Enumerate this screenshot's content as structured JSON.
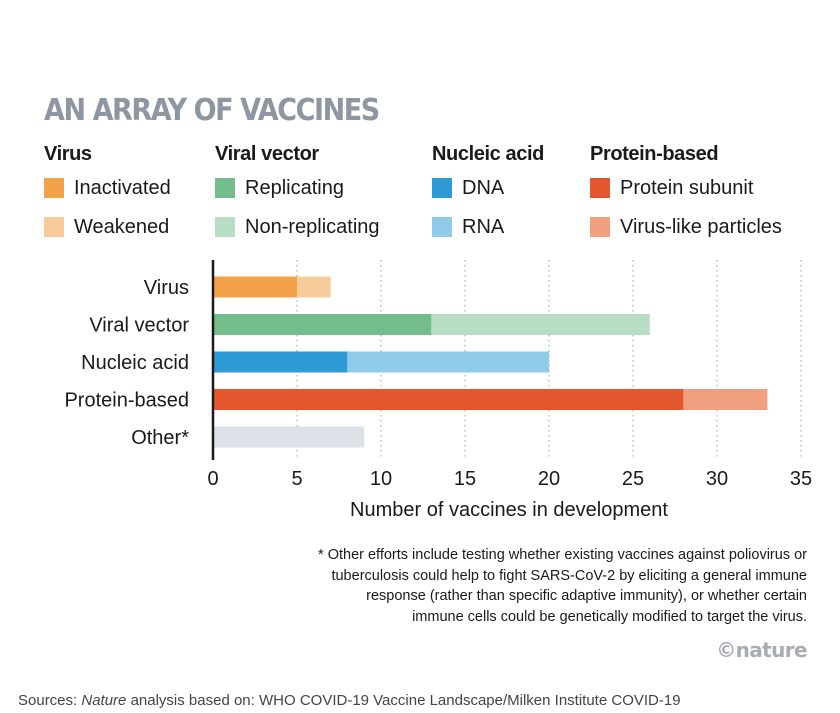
{
  "chart_data": {
    "type": "bar",
    "orientation": "horizontal",
    "stacked": true,
    "title": "AN ARRAY OF VACCINES",
    "xlabel": "Number of vaccines in development",
    "ylabel": "",
    "xlim": [
      0,
      35
    ],
    "xticks": [
      0,
      5,
      10,
      15,
      20,
      25,
      30,
      35
    ],
    "grid": "vertical dotted",
    "categories": [
      "Virus",
      "Viral vector",
      "Nucleic acid",
      "Protein-based",
      "Other*"
    ],
    "legend": [
      {
        "group": "Virus",
        "items": [
          {
            "label": "Inactivated",
            "color": "#f4a24a"
          },
          {
            "label": "Weakened",
            "color": "#f8cc9a"
          }
        ]
      },
      {
        "group": "Viral vector",
        "items": [
          {
            "label": "Replicating",
            "color": "#73bd8a"
          },
          {
            "label": "Non-replicating",
            "color": "#b7deC3"
          }
        ]
      },
      {
        "group": "Nucleic acid",
        "items": [
          {
            "label": "DNA",
            "color": "#2e9bd6"
          },
          {
            "label": "RNA",
            "color": "#90cbea"
          }
        ]
      },
      {
        "group": "Protein-based",
        "items": [
          {
            "label": "Protein subunit",
            "color": "#e4572e"
          },
          {
            "label": "Virus-like particles",
            "color": "#f0a07e"
          }
        ]
      }
    ],
    "bars": [
      {
        "category": "Virus",
        "segments": [
          {
            "name": "Inactivated",
            "value": 5,
            "color": "#f4a24a"
          },
          {
            "name": "Weakened",
            "value": 2,
            "color": "#f8cc9a"
          }
        ]
      },
      {
        "category": "Viral vector",
        "segments": [
          {
            "name": "Replicating",
            "value": 13,
            "color": "#73bd8a"
          },
          {
            "name": "Non-replicating",
            "value": 13,
            "color": "#b7dec3"
          }
        ]
      },
      {
        "category": "Nucleic acid",
        "segments": [
          {
            "name": "DNA",
            "value": 8,
            "color": "#2e9bd6"
          },
          {
            "name": "RNA",
            "value": 12,
            "color": "#90cbea"
          }
        ]
      },
      {
        "category": "Protein-based",
        "segments": [
          {
            "name": "Protein subunit",
            "value": 28,
            "color": "#e4572e"
          },
          {
            "name": "Virus-like particles",
            "value": 5,
            "color": "#f0a07e"
          }
        ]
      },
      {
        "category": "Other*",
        "segments": [
          {
            "name": "Other",
            "value": 9,
            "color": "#dde1e8"
          }
        ]
      }
    ]
  },
  "footnote": {
    "lines": [
      "* Other efforts include testing whether existing vaccines against poliovirus or",
      "tuberculosis could help to fight SARS-CoV-2 by eliciting a general immune",
      "response (rather than specific adaptive immunity), or whether certain",
      "immune cells could be genetically modified to target the virus."
    ]
  },
  "credit": "©nature",
  "sources": {
    "prefix": "Sources: ",
    "italic": "Nature",
    "rest": " analysis based on: WHO COVID-19 Vaccine Landscape/Milken Institute COVID-19"
  }
}
